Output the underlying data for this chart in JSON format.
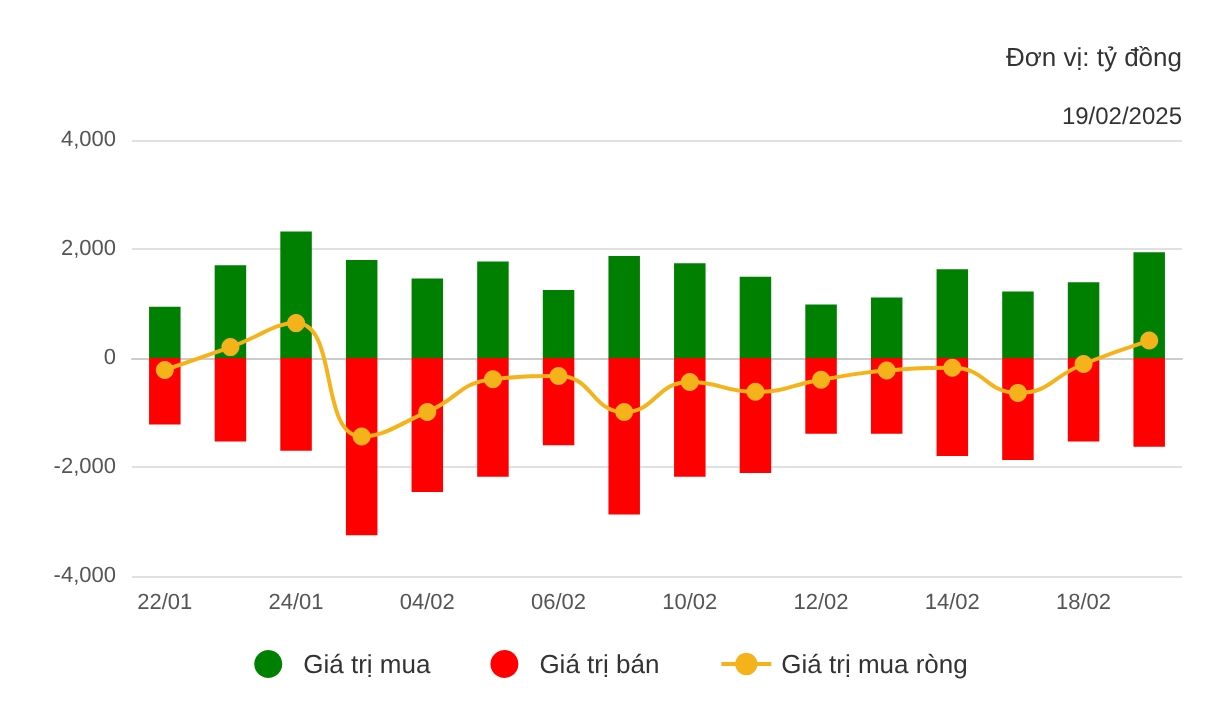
{
  "chart_data": {
    "type": "bar",
    "stacked": true,
    "annotations": [
      "Đơn vị: tỷ đồng",
      "19/02/2025"
    ],
    "categories": [
      "22/01",
      null,
      "24/01",
      null,
      "04/02",
      null,
      "06/02",
      null,
      "10/02",
      null,
      "12/02",
      null,
      "14/02",
      null,
      "18/02",
      null
    ],
    "series": [
      {
        "name": "Giá trị mua",
        "color": "#008000",
        "values": [
          940,
          1700,
          2320,
          1800,
          1460,
          1770,
          1250,
          1870,
          1740,
          1490,
          980,
          1110,
          1630,
          1220,
          1390,
          1940
        ]
      },
      {
        "name": "Giá trị bán",
        "color": "#ff0000",
        "values": [
          -1220,
          -1530,
          -1700,
          -3250,
          -2460,
          -2180,
          -1600,
          -2870,
          -2180,
          -2110,
          -1390,
          -1390,
          -1800,
          -1870,
          -1530,
          -1630
        ]
      },
      {
        "name": "Giá trị mua ròng",
        "type": "line",
        "color": "#f5b31b",
        "values": [
          -220,
          200,
          640,
          -1440,
          -990,
          -390,
          -330,
          -990,
          -440,
          -620,
          -400,
          -230,
          -180,
          -640,
          -110,
          320
        ]
      }
    ],
    "ylim": [
      -4000,
      4000
    ],
    "yticks": [
      {
        "value": -4000,
        "label": "-4,000"
      },
      {
        "value": -2000,
        "label": "-2,000"
      },
      {
        "value": 0,
        "label": "0"
      },
      {
        "value": 2000,
        "label": "2,000"
      },
      {
        "value": 4000,
        "label": "4,000"
      }
    ],
    "grid": "y",
    "legend": "bottom",
    "marker": "circle",
    "line_style": "solid"
  }
}
